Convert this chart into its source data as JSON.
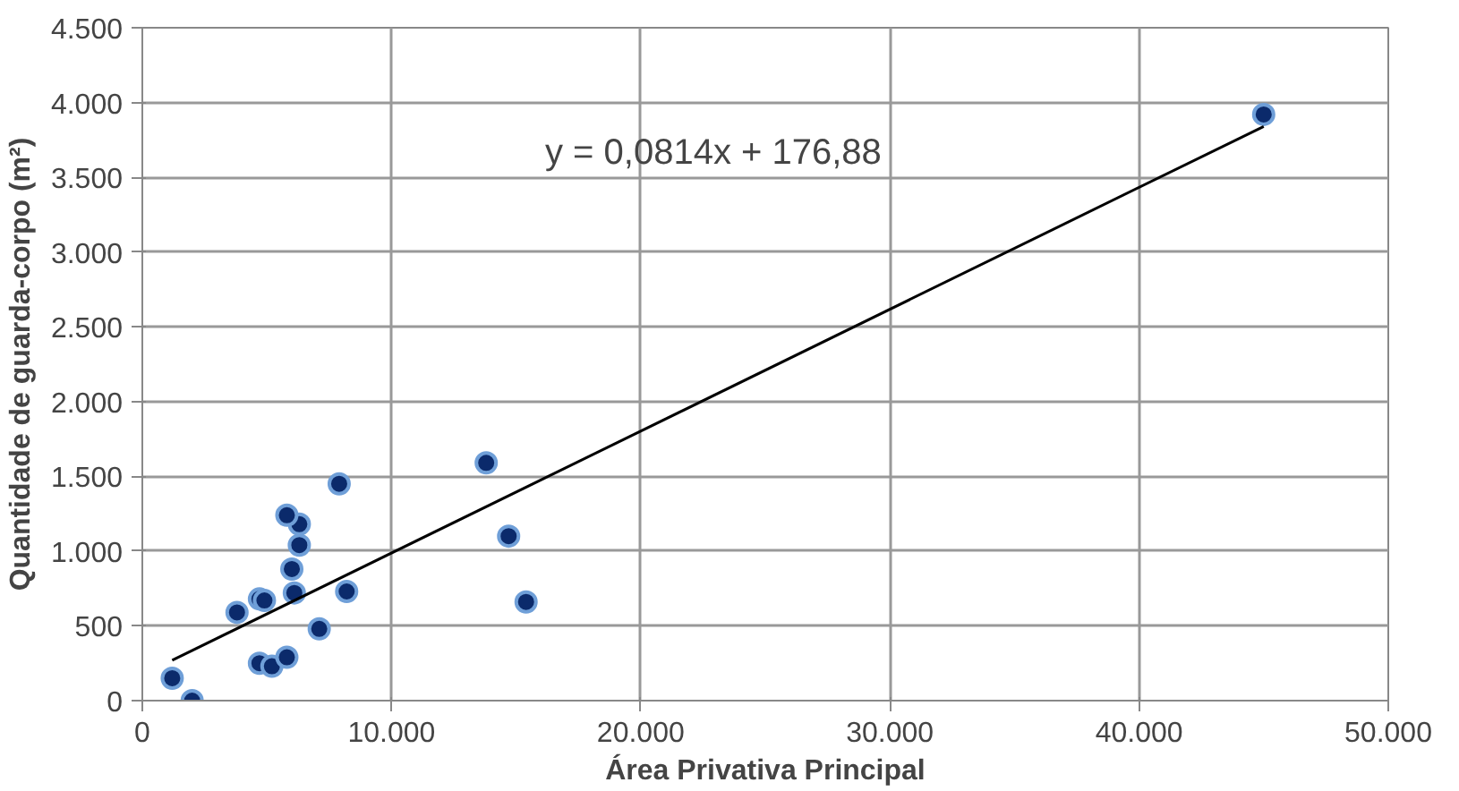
{
  "chart_data": {
    "type": "scatter",
    "xlabel": "Área Privativa Principal",
    "ylabel": "Quantidade de guarda-corpo (m²)",
    "series": [
      {
        "color": "#0b2a6b",
        "marker": "circle",
        "x": [
          1200,
          2000,
          3800,
          4700,
          4900,
          4700,
          5200,
          5800,
          7100,
          6100,
          6000,
          6300,
          6300,
          5800,
          7900,
          8200,
          13800,
          14700,
          15400,
          45000
        ],
        "values": [
          150,
          0,
          590,
          680,
          670,
          250,
          230,
          290,
          480,
          720,
          880,
          1040,
          1180,
          1240,
          1450,
          730,
          1590,
          1100,
          660,
          3920
        ]
      },
      {
        "type": "line",
        "color": "#000000",
        "x": [
          1200,
          45000
        ],
        "values": [
          270,
          3840
        ]
      }
    ],
    "xlim": [
      0,
      50000
    ],
    "ylim": [
      0,
      4500
    ],
    "xticks": [
      {
        "value": 0,
        "label": "0"
      },
      {
        "value": 10000,
        "label": "10.000"
      },
      {
        "value": 20000,
        "label": "20.000"
      },
      {
        "value": 30000,
        "label": "30.000"
      },
      {
        "value": 40000,
        "label": "40.000"
      },
      {
        "value": 50000,
        "label": "50.000"
      }
    ],
    "yticks": [
      {
        "value": 0,
        "label": "0"
      },
      {
        "value": 500,
        "label": "500"
      },
      {
        "value": 1000,
        "label": "1.000"
      },
      {
        "value": 1500,
        "label": "1.500"
      },
      {
        "value": 2000,
        "label": "2.000"
      },
      {
        "value": 2500,
        "label": "2.500"
      },
      {
        "value": 3000,
        "label": "3.000"
      },
      {
        "value": 3500,
        "label": "3.500"
      },
      {
        "value": 4000,
        "label": "4.000"
      },
      {
        "value": 4500,
        "label": "4.500"
      }
    ],
    "annotations": [
      "y = 0,0814x + 176,88"
    ],
    "grid": true
  }
}
